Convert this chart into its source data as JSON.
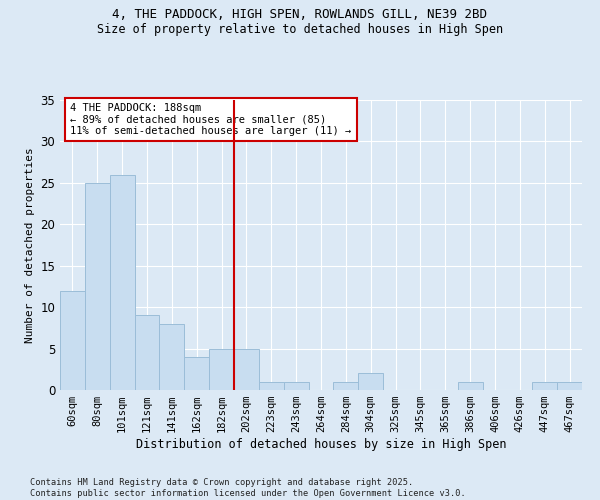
{
  "title1": "4, THE PADDOCK, HIGH SPEN, ROWLANDS GILL, NE39 2BD",
  "title2": "Size of property relative to detached houses in High Spen",
  "xlabel": "Distribution of detached houses by size in High Spen",
  "ylabel": "Number of detached properties",
  "bar_labels": [
    "60sqm",
    "80sqm",
    "101sqm",
    "121sqm",
    "141sqm",
    "162sqm",
    "182sqm",
    "202sqm",
    "223sqm",
    "243sqm",
    "264sqm",
    "284sqm",
    "304sqm",
    "325sqm",
    "345sqm",
    "365sqm",
    "386sqm",
    "406sqm",
    "426sqm",
    "447sqm",
    "467sqm"
  ],
  "bar_values": [
    12,
    25,
    26,
    9,
    8,
    4,
    5,
    5,
    1,
    1,
    0,
    1,
    2,
    0,
    0,
    0,
    1,
    0,
    0,
    1,
    1
  ],
  "bar_color": "#c8ddf0",
  "bar_edge_color": "#9bbdd8",
  "vline_x": 6.5,
  "vline_color": "#cc0000",
  "annotation_text": "4 THE PADDOCK: 188sqm\n← 89% of detached houses are smaller (85)\n11% of semi-detached houses are larger (11) →",
  "annotation_box_color": "#ffffff",
  "annotation_box_edge": "#cc0000",
  "ylim": [
    0,
    35
  ],
  "yticks": [
    0,
    5,
    10,
    15,
    20,
    25,
    30,
    35
  ],
  "footer": "Contains HM Land Registry data © Crown copyright and database right 2025.\nContains public sector information licensed under the Open Government Licence v3.0.",
  "bg_color": "#dce9f5",
  "plot_bg_color": "#dce9f5"
}
